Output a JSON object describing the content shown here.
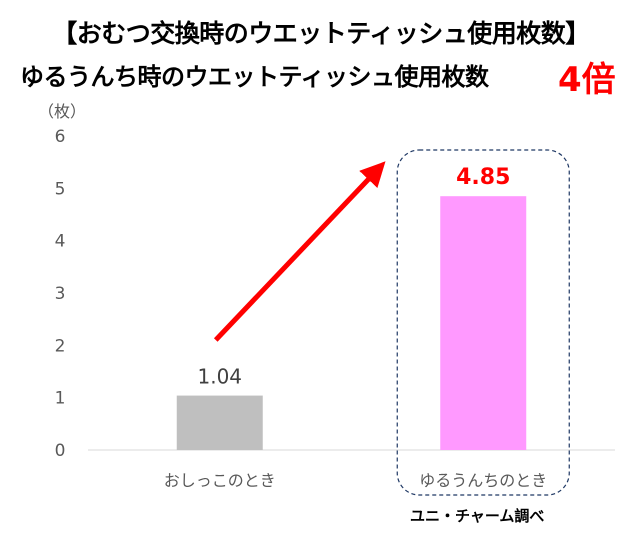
{
  "header": {
    "title_line1": "【おむつ交換時のウエットティッシュ使用枚数】",
    "title_line2": "ゆるうんち時のウエットティッシュ使用枚数",
    "callout": "4倍"
  },
  "footer": {
    "source": "ユニ・チャーム調べ"
  },
  "colors": {
    "bar_1": "#bfbfbf",
    "bar_2": "#ff99ff",
    "highlight": "#ff0000",
    "callout_box": "#1f3864"
  },
  "chart_data": {
    "type": "bar",
    "title": "",
    "unit_label": "（枚）",
    "xlabel": "",
    "ylabel": "",
    "categories": [
      "おしっこのとき",
      "ゆるうんちのとき"
    ],
    "values": [
      1.04,
      4.85
    ],
    "data_labels": [
      "1.04",
      "4.85"
    ],
    "ylim": [
      0,
      6
    ],
    "yticks": [
      0,
      1,
      2,
      3,
      4,
      5,
      6
    ],
    "grid": false,
    "legend": "none"
  }
}
